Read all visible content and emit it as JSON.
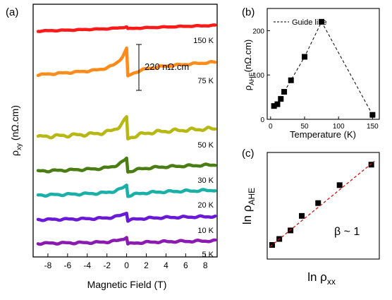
{
  "chart_data": [
    {
      "panel": "(a)",
      "type": "line",
      "xlabel": "Magnetic Field (T)",
      "ylabel_main": "ρ",
      "ylabel_sub": "xy",
      "ylabel_unit": " (nΩ.cm)",
      "xlim": [
        -9.5,
        9.2
      ],
      "xticks": [
        "-8",
        "-6",
        "-4",
        "-2",
        "0",
        "2",
        "4",
        "6",
        "8"
      ],
      "scale_bar_label": "220 nΩ.cm",
      "series": [
        {
          "name": "150 K",
          "color": "#ff1a1a",
          "baseline": 40,
          "amp": 2,
          "slope": 0.9,
          "noise": 0.4
        },
        {
          "name": "75 K",
          "color": "#ff8c1a",
          "baseline": 97,
          "amp": 28,
          "slope": 2.0,
          "noise": 0.8
        },
        {
          "name": "50 K",
          "color": "#b8b814",
          "baseline": 188,
          "amp": 22,
          "slope": 1.3,
          "noise": 1.6
        },
        {
          "name": "30 K",
          "color": "#4a7d12",
          "baseline": 238,
          "amp": 14,
          "slope": 1.0,
          "noise": 1.0
        },
        {
          "name": "20 K",
          "color": "#1ab0a8",
          "baseline": 273,
          "amp": 11,
          "slope": 0.8,
          "noise": 1.0
        },
        {
          "name": "10 K",
          "color": "#6a1ad6",
          "baseline": 309,
          "amp": 8,
          "slope": 0.5,
          "noise": 0.9
        },
        {
          "name": "5 K",
          "color": "#8a1ab0",
          "baseline": 343,
          "amp": 7,
          "slope": 0.4,
          "noise": 0.9
        }
      ]
    },
    {
      "panel": "(b)",
      "type": "scatter",
      "xlabel": "Temperature (K)",
      "ylabel_main": "ρ",
      "ylabel_sub": "AHE",
      "ylabel_unit": "(nΩ.cm)",
      "xlim": [
        -5,
        160
      ],
      "ylim": [
        0,
        250
      ],
      "xticks": [
        0,
        50,
        100,
        150
      ],
      "yticks": [
        0,
        100,
        200
      ],
      "legend": "Guide line",
      "x": [
        5,
        10,
        15,
        20,
        30,
        50,
        75,
        150
      ],
      "y": [
        30,
        34,
        46,
        62,
        88,
        141,
        220,
        10
      ]
    },
    {
      "panel": "(c)",
      "type": "scatter",
      "xlabel_main": "ln ρ",
      "xlabel_sub": "xx",
      "ylabel_main": "ln ρ",
      "ylabel_sub": "AHE",
      "annotation": "β ~ 1",
      "points": [
        [
          0,
          0
        ],
        [
          0.07,
          0.07
        ],
        [
          0.18,
          0.17
        ],
        [
          0.29,
          0.34
        ],
        [
          0.45,
          0.49
        ],
        [
          0.66,
          0.7
        ],
        [
          0.97,
          0.94
        ]
      ]
    }
  ]
}
